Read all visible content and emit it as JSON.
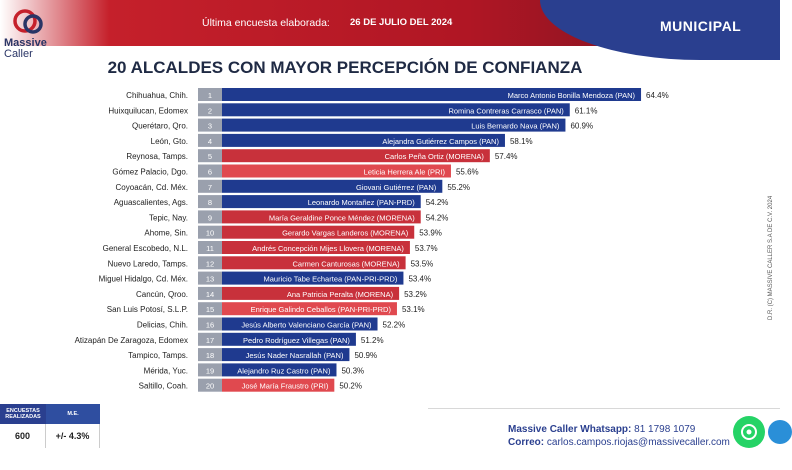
{
  "brand": {
    "line1": "Massive",
    "line2": "Caller"
  },
  "header": {
    "survey_label": "Última encuesta elaborada:",
    "survey_date": "26 DE JULIO DEL 2024",
    "section": "MUNICIPAL"
  },
  "colors": {
    "PAN": "#1f3a8f",
    "MORENA": "#c8313b",
    "PRI": "#e0494f",
    "red_header": "#b01624",
    "blue_header": "#2a3f8f"
  },
  "chart_data": {
    "type": "bar",
    "orientation": "horizontal",
    "title": "20 ALCALDES CON MAYOR PERCEPCIÓN DE CONFIANZA",
    "ranks": [
      "1",
      "2",
      "3",
      "4",
      "5",
      "6",
      "7",
      "8",
      "9",
      "10",
      "11",
      "12",
      "13",
      "14",
      "15",
      "16",
      "17",
      "18",
      "19",
      "20"
    ],
    "categories": [
      "Chihuahua, Chih.",
      "Huixquilucan, Edomex",
      "Querétaro, Qro.",
      "León, Gto.",
      "Reynosa, Tamps.",
      "Gómez Palacio, Dgo.",
      "Coyoacán, Cd. Méx.",
      "Aguascalientes, Ags.",
      "Tepic, Nay.",
      "Ahome, Sin.",
      "General Escobedo, N.L.",
      "Nuevo Laredo, Tamps.",
      "Miguel Hidalgo, Cd. Méx.",
      "Cancún, Qroo.",
      "San Luis Potosí, S.L.P.",
      "Delicias, Chih.",
      "Atizapán De Zaragoza, Edomex",
      "Tampico, Tamps.",
      "Mérida, Yuc.",
      "Saltillo, Coah."
    ],
    "names": [
      "Marco Antonio Bonilla Mendoza (PAN)",
      "Romina Contreras Carrasco (PAN)",
      "Luis Bernardo Nava (PAN)",
      "Alejandra Gutiérrez Campos (PAN)",
      "Carlos Peña Ortiz (MORENA)",
      "Leticia Herrera Ale (PRI)",
      "Giovani Gutiérrez (PAN)",
      "Leonardo Montañez (PAN-PRD)",
      "María Geraldine Ponce Méndez (MORENA)",
      "Gerardo Vargas Landeros (MORENA)",
      "Andrés Concepción Mijes Llovera (MORENA)",
      "Carmen Canturosas (MORENA)",
      "Mauricio Tabe Echartea (PAN-PRI-PRD)",
      "Ana Patricia Peralta (MORENA)",
      "Enrique Galindo Ceballos (PAN-PRI-PRD)",
      "Jesús Alberto Valenciano García (PAN)",
      "Pedro Rodríguez Villegas (PAN)",
      "Jesús Nader Nasrallah (PAN)",
      "Alejandro Ruz Castro (PAN)",
      "José María Fraustro (PRI)"
    ],
    "parties": [
      "PAN",
      "PAN",
      "PAN",
      "PAN",
      "MORENA",
      "PRI",
      "PAN",
      "PAN",
      "MORENA",
      "MORENA",
      "MORENA",
      "MORENA",
      "PAN",
      "MORENA",
      "PRI",
      "PAN",
      "PAN",
      "PAN",
      "PAN",
      "PRI"
    ],
    "values": [
      64.4,
      61.1,
      60.9,
      58.1,
      57.4,
      55.6,
      55.2,
      54.2,
      54.2,
      53.9,
      53.7,
      53.5,
      53.4,
      53.2,
      53.1,
      52.2,
      51.2,
      50.9,
      50.3,
      50.2
    ],
    "value_labels": [
      "64.4%",
      "61.1%",
      "60.9%",
      "58.1%",
      "57.4%",
      "55.6%",
      "55.2%",
      "54.2%",
      "54.2%",
      "53.9%",
      "53.7%",
      "53.5%",
      "53.4%",
      "53.2%",
      "53.1%",
      "52.2%",
      "51.2%",
      "50.9%",
      "50.3%",
      "50.2%"
    ]
  },
  "stats": {
    "col1_header": "ENCUESTAS REALIZADAS",
    "col2_header": "M.E.",
    "col1_value": "600",
    "col2_value": "+/- 4.3%"
  },
  "contact": {
    "whatsapp_label": "Massive Caller Whatsapp:",
    "whatsapp_number": "81 1798 1079",
    "email_label": "Correo:",
    "email": "carlos.campos.riojas@massivecaller.com"
  },
  "credit": "D.R. (C) MASSIVE CALLER S.A DE C.V. 2024",
  "icons": {
    "whatsapp": "whatsapp-icon",
    "telegram": "telegram-icon",
    "logo": "chat-bubble-icon"
  }
}
